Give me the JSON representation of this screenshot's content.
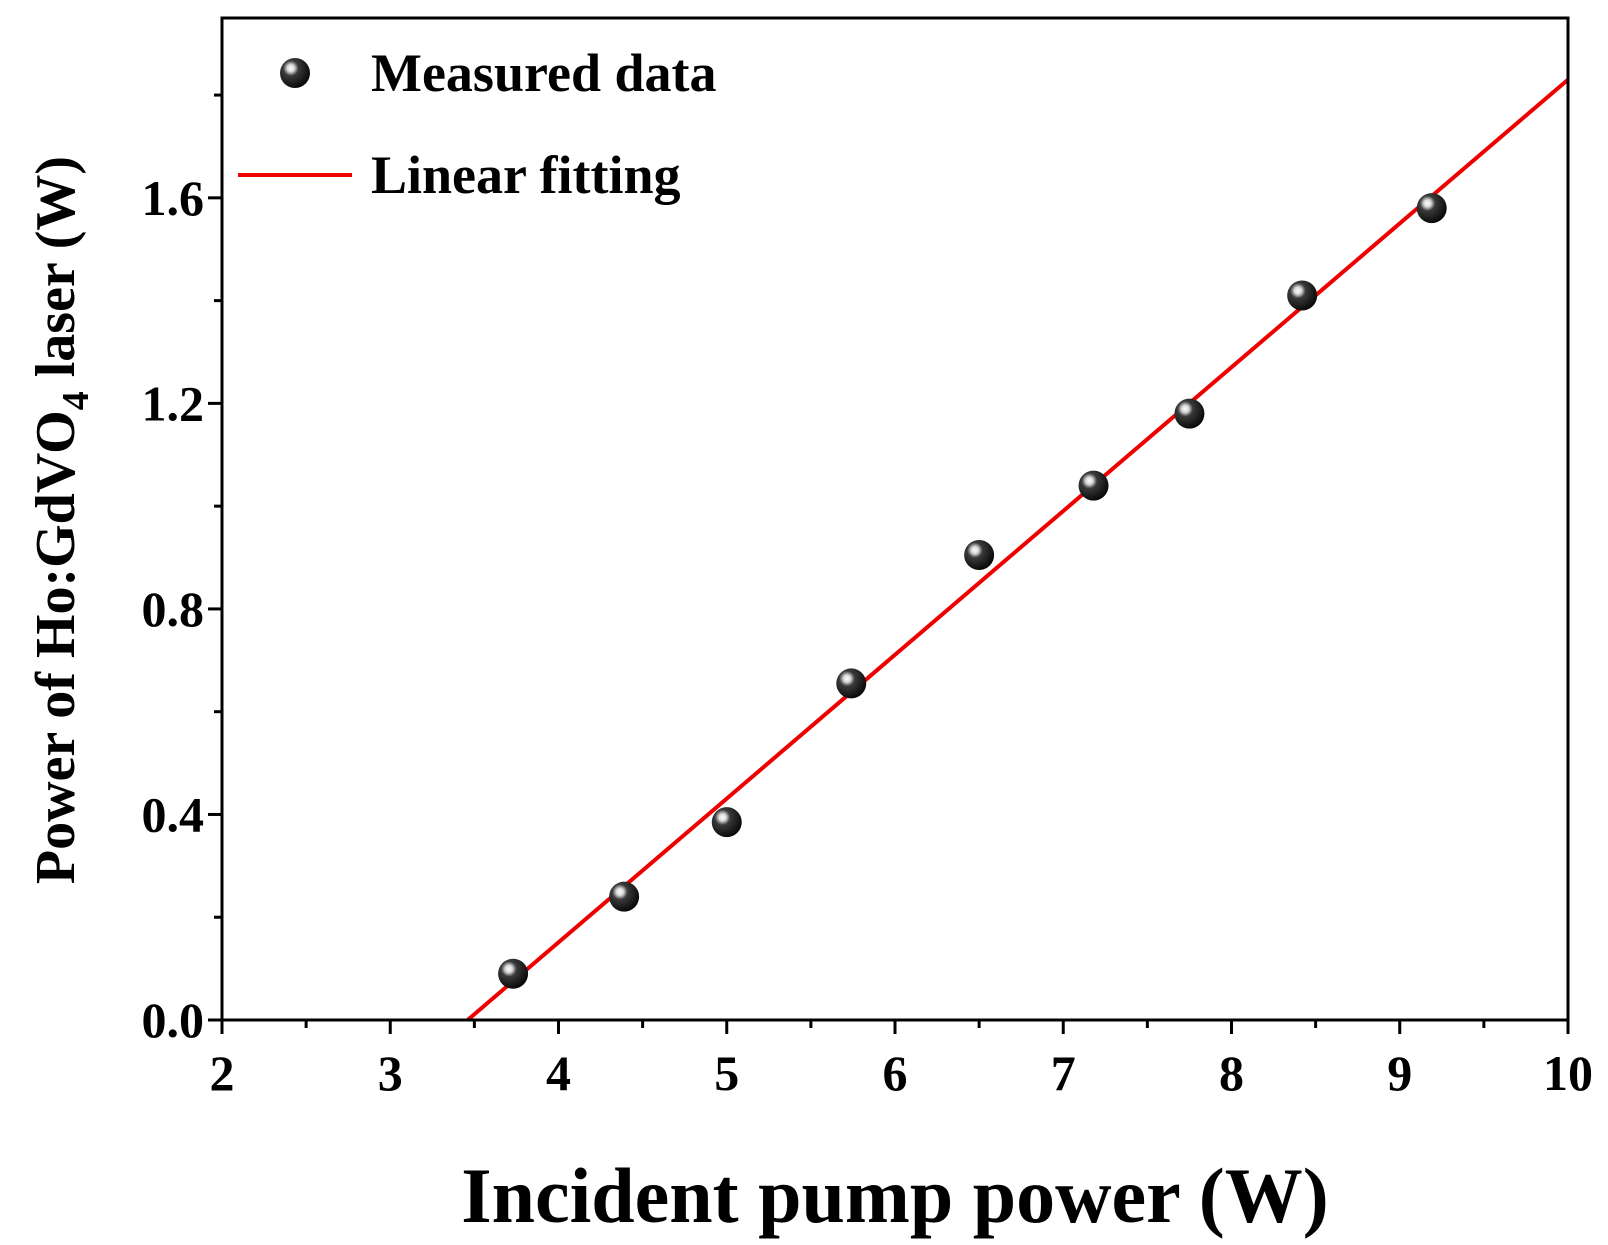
{
  "chart_data": {
    "type": "scatter",
    "title": "",
    "xlabel": "Incident pump power (W)",
    "ylabel": {
      "prefix": "Power of Ho:GdVO",
      "subscript": "4",
      "suffix": " laser (W)"
    },
    "xlim": [
      2,
      10
    ],
    "ylim": [
      0,
      1.95
    ],
    "x_ticks": [
      2,
      3,
      4,
      5,
      6,
      7,
      8,
      9,
      10
    ],
    "x_tick_labels": [
      "2",
      "3",
      "4",
      "5",
      "6",
      "7",
      "8",
      "9",
      "10"
    ],
    "y_ticks": [
      0.0,
      0.4,
      0.8,
      1.2,
      1.6
    ],
    "y_tick_labels": [
      "0.0",
      "0.4",
      "0.8",
      "1.2",
      "1.6"
    ],
    "grid": false,
    "legend_position": "top-left",
    "series": [
      {
        "name": "Measured data",
        "kind": "scatter",
        "color": "#000000",
        "x": [
          3.73,
          4.39,
          5.0,
          5.74,
          6.5,
          7.18,
          7.75,
          8.42,
          9.19
        ],
        "y": [
          0.09,
          0.24,
          0.385,
          0.655,
          0.905,
          1.04,
          1.18,
          1.41,
          1.58
        ]
      },
      {
        "name": "Linear fitting",
        "kind": "line",
        "color": "#ee0000",
        "x": [
          3.46,
          10.0
        ],
        "y": [
          0.0,
          1.83
        ]
      }
    ]
  }
}
